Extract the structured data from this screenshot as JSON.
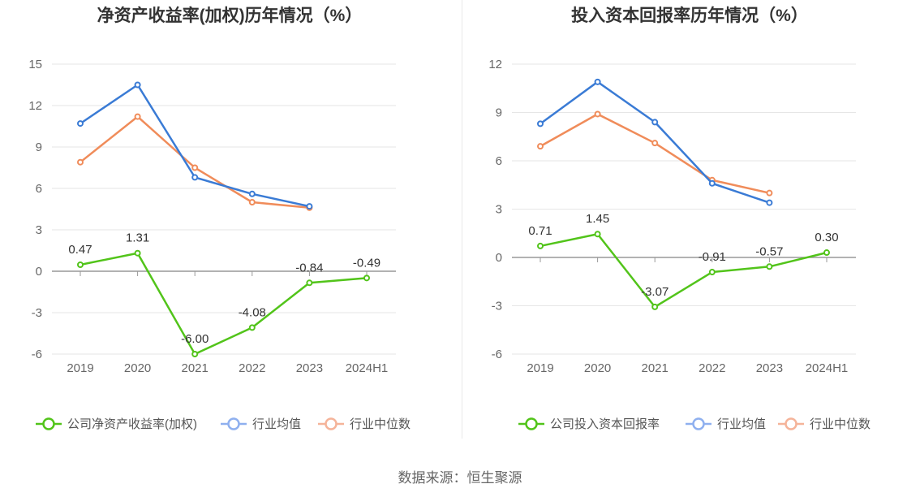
{
  "source_label": "数据来源：恒生聚源",
  "colors": {
    "company": "#52c41a",
    "industry_avg": "#3a7bd5",
    "industry_median": "#f08c5a",
    "legend_avg": "#8fb0ef",
    "legend_median": "#f5b49a"
  },
  "chart_data": [
    {
      "type": "line",
      "title": "净资产收益率(加权)历年情况（%）",
      "categories": [
        "2019",
        "2020",
        "2021",
        "2022",
        "2023",
        "2024H1"
      ],
      "yticks": [
        "15",
        "12",
        "9",
        "6",
        "3",
        "0",
        "-3",
        "-6"
      ],
      "ylim": [
        -6,
        15
      ],
      "grid": true,
      "legend_position": "bottom",
      "series": [
        {
          "name": "公司净资产收益率(加权)",
          "values": [
            0.47,
            1.31,
            -6.0,
            -4.08,
            -0.84,
            -0.49
          ],
          "labels": [
            "0.47",
            "1.31",
            "-6.00",
            "-4.08",
            "-0.84",
            "-0.49"
          ]
        },
        {
          "name": "行业均值",
          "values": [
            10.7,
            13.5,
            6.8,
            5.6,
            4.7,
            null
          ]
        },
        {
          "name": "行业中位数",
          "values": [
            7.9,
            11.2,
            7.5,
            5.0,
            4.6,
            null
          ]
        }
      ]
    },
    {
      "type": "line",
      "title": "投入资本回报率历年情况（%）",
      "categories": [
        "2019",
        "2020",
        "2021",
        "2022",
        "2023",
        "2024H1"
      ],
      "yticks": [
        "12",
        "9",
        "6",
        "3",
        "0",
        "-3",
        "-6"
      ],
      "ylim": [
        -6,
        12
      ],
      "grid": true,
      "legend_position": "bottom",
      "series": [
        {
          "name": "公司投入资本回报率",
          "values": [
            0.71,
            1.45,
            -3.07,
            -0.91,
            -0.57,
            0.3
          ],
          "labels": [
            "0.71",
            "1.45",
            "-3.07",
            "-0.91",
            "-0.57",
            "0.30"
          ]
        },
        {
          "name": "行业均值",
          "values": [
            8.3,
            10.9,
            8.4,
            4.6,
            3.4,
            null
          ]
        },
        {
          "name": "行业中位数",
          "values": [
            6.9,
            8.9,
            7.1,
            4.8,
            4.0,
            null
          ]
        }
      ]
    }
  ]
}
